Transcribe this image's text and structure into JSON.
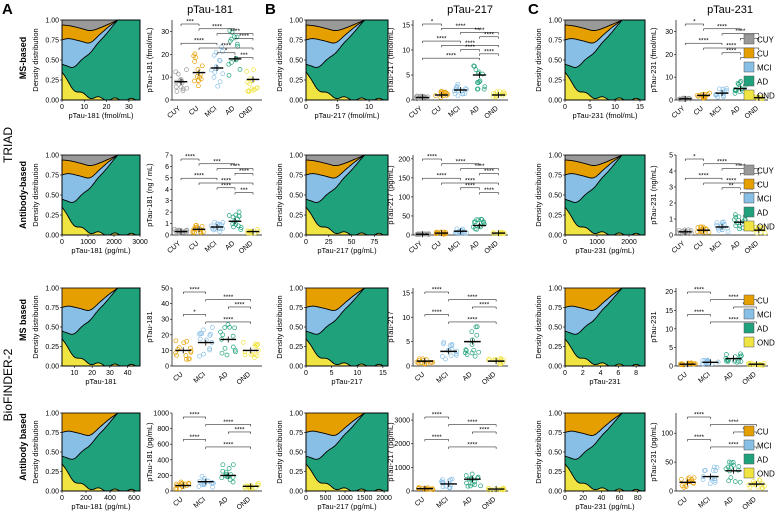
{
  "panel_letters": [
    "A",
    "B",
    "C"
  ],
  "column_titles": [
    "pTau-181",
    "pTau-217",
    "pTau-231"
  ],
  "cohorts": [
    "TRIAD",
    "BioFINDER-2"
  ],
  "assay_labels": [
    "MS-based",
    "Antibody-based",
    "MS based",
    "Antibody based"
  ],
  "density_ylabel": "Density distribution",
  "legends": {
    "triad": [
      "CUY",
      "CU",
      "MCI",
      "AD",
      "OND"
    ],
    "bf2": [
      "CU",
      "MCI",
      "AD",
      "OND"
    ]
  },
  "colors": {
    "CUY": "#999999",
    "CU": "#E69F00",
    "MCI": "#88BFE6",
    "AD": "#1FA27C",
    "OND": "#F0E442"
  },
  "chart_data": [
    {
      "row": 0,
      "col": 0,
      "type": "area",
      "xlabel": "pTau-181 (fmol/mL)",
      "xticks": [
        "0",
        "10",
        "20",
        "30"
      ],
      "xlim": [
        0,
        35
      ],
      "yticks": [
        "0.00",
        "0.25",
        "0.50",
        "0.75",
        "1.00"
      ],
      "ylim": [
        0,
        1
      ],
      "scatter": {
        "type": "scatter",
        "ylabel": "pTau-181 (fmol/mL)",
        "categories": [
          "CUY",
          "CU",
          "MCI",
          "AD",
          "OND"
        ],
        "yticks": [
          "0",
          "10",
          "20",
          "30"
        ],
        "ylim": [
          0,
          35
        ],
        "medians": [
          8,
          12,
          14,
          18,
          9
        ],
        "sig": [
          "***",
          "****",
          "****",
          "****",
          "****",
          "****",
          "*",
          "***"
        ]
      }
    },
    {
      "row": 0,
      "col": 1,
      "type": "area",
      "xlabel": "pTau-217 (fmol/mL)",
      "xticks": [
        "0",
        "5",
        "10"
      ],
      "xlim": [
        0,
        13
      ],
      "yticks": [
        "0.00",
        "0.25",
        "0.50",
        "0.75",
        "1.00"
      ],
      "ylim": [
        0,
        1
      ],
      "scatter": {
        "type": "scatter",
        "ylabel": "pTau-217 (fmol/mL)",
        "categories": [
          "CUY",
          "CU",
          "MCI",
          "AD",
          "OND"
        ],
        "yticks": [
          "0",
          "5",
          "10",
          "15"
        ],
        "ylim": [
          0,
          16
        ],
        "medians": [
          0.5,
          1,
          2,
          5,
          1
        ],
        "sig": [
          "*",
          "****",
          "****",
          "****",
          "****",
          "****",
          "****",
          "****",
          "****"
        ]
      }
    },
    {
      "row": 0,
      "col": 2,
      "type": "area",
      "xlabel": "pTau-231 (fmol/mL)",
      "xticks": [
        "0",
        "5",
        "10",
        "15"
      ],
      "xlim": [
        0,
        16
      ],
      "yticks": [
        "0.00",
        "0.25",
        "0.50",
        "0.75",
        "1.00"
      ],
      "ylim": [
        0,
        1
      ],
      "scatter": {
        "type": "scatter",
        "ylabel": "pTau-231 (fmol/mL)",
        "categories": [
          "CUY",
          "CU",
          "MCI",
          "AD",
          "OND"
        ],
        "yticks": [
          "0",
          "10",
          "20",
          "30"
        ],
        "ylim": [
          0,
          35
        ],
        "medians": [
          0.5,
          2,
          3,
          5,
          1
        ],
        "sig": [
          "*",
          "****",
          "****",
          "****",
          "****",
          "****",
          "****",
          "****"
        ]
      }
    },
    {
      "row": 1,
      "col": 0,
      "type": "area",
      "xlabel": "pTau-181 (pg/mL)",
      "xticks": [
        "0",
        "1000",
        "2000",
        "3000"
      ],
      "xlim": [
        0,
        3000
      ],
      "yticks": [
        "0.00",
        "0.25",
        "0.50",
        "0.75",
        "1.00"
      ],
      "ylim": [
        0,
        1
      ],
      "scatter": {
        "type": "scatter",
        "ylabel": "pTau-181 (ng / mL)",
        "categories": [
          "CUY",
          "CU",
          "MCI",
          "AD",
          "OND"
        ],
        "yticks": [
          "0",
          "1",
          "2",
          "3",
          "4",
          "5",
          "6",
          "7"
        ],
        "ylim": [
          0,
          7
        ],
        "medians": [
          0.3,
          0.5,
          0.7,
          1.2,
          0.3
        ],
        "sig": [
          "****",
          "***",
          "****",
          "****",
          "****",
          "****",
          "****",
          "***"
        ]
      }
    },
    {
      "row": 1,
      "col": 1,
      "type": "area",
      "xlabel": "pTau-217 (pg/mL)",
      "xticks": [
        "0",
        "25",
        "50",
        "75"
      ],
      "xlim": [
        0,
        90
      ],
      "yticks": [
        "0.00",
        "0.25",
        "0.50",
        "0.75",
        "1.00"
      ],
      "ylim": [
        0,
        1
      ],
      "scatter": {
        "type": "scatter",
        "ylabel": "pTau-217 (pg/mL)",
        "categories": [
          "CUY",
          "CU",
          "MCI",
          "AD",
          "OND"
        ],
        "yticks": [
          "0",
          "50",
          "100",
          "150",
          "200"
        ],
        "ylim": [
          0,
          210
        ],
        "medians": [
          2,
          5,
          10,
          25,
          5
        ],
        "sig": [
          "****",
          "****",
          "****",
          "****",
          "****",
          "****",
          "****",
          "****"
        ]
      }
    },
    {
      "row": 1,
      "col": 2,
      "type": "area",
      "xlabel": "pTau-231 (pg/mL)",
      "xticks": [
        "0",
        "1000",
        "2000"
      ],
      "xlim": [
        0,
        2500
      ],
      "yticks": [
        "0.00",
        "0.25",
        "0.50",
        "0.75",
        "1.00"
      ],
      "ylim": [
        0,
        1
      ],
      "scatter": {
        "type": "scatter",
        "ylabel": "pTau-231 (ng/mL)",
        "categories": [
          "CUY",
          "CU",
          "MCI",
          "AD",
          "OND"
        ],
        "yticks": [
          "0",
          "1",
          "2",
          "3",
          "4",
          "5"
        ],
        "ylim": [
          0,
          5
        ],
        "medians": [
          0.2,
          0.3,
          0.5,
          0.8,
          0.3
        ],
        "sig": [
          "*",
          "****",
          "****",
          "****",
          "****",
          "****",
          "**",
          "***"
        ]
      }
    },
    {
      "row": 2,
      "col": 0,
      "type": "area",
      "xlabel": "pTau-181",
      "xticks": [
        "10",
        "20",
        "30",
        "40"
      ],
      "xlim": [
        3,
        47
      ],
      "yticks": [
        "0.00",
        "0.25",
        "0.50",
        "0.75",
        "1.00"
      ],
      "ylim": [
        0,
        1
      ],
      "scatter": {
        "type": "scatter",
        "ylabel": "pTau-181",
        "categories": [
          "CU",
          "MCI",
          "AD",
          "OND"
        ],
        "yticks": [
          "0",
          "10",
          "20",
          "30",
          "40",
          "50"
        ],
        "ylim": [
          0,
          50
        ],
        "medians": [
          10,
          15,
          17,
          10
        ],
        "sig": [
          "****",
          "****",
          "****",
          "*",
          "****"
        ]
      }
    },
    {
      "row": 2,
      "col": 1,
      "type": "area",
      "xlabel": "pTau-217",
      "xticks": [
        "0",
        "5",
        "10",
        "15"
      ],
      "xlim": [
        0,
        16
      ],
      "yticks": [
        "0.00",
        "0.25",
        "0.50",
        "0.75",
        "1.00"
      ],
      "ylim": [
        0,
        1
      ],
      "scatter": {
        "type": "scatter",
        "ylabel": "pTau-217",
        "categories": [
          "CU",
          "MCI",
          "AD",
          "OND"
        ],
        "yticks": [
          "0",
          "5",
          "10",
          "15"
        ],
        "ylim": [
          0,
          16
        ],
        "medians": [
          1,
          3,
          5,
          1
        ],
        "sig": [
          "****",
          "****",
          "****",
          "****",
          "****"
        ]
      }
    },
    {
      "row": 2,
      "col": 2,
      "type": "area",
      "xlabel": "pTau-231",
      "xticks": [
        "0",
        "2",
        "4",
        "6",
        "8"
      ],
      "xlim": [
        0,
        9
      ],
      "yticks": [
        "0.00",
        "0.25",
        "0.50",
        "0.75",
        "1.00"
      ],
      "ylim": [
        0,
        1
      ],
      "scatter": {
        "type": "scatter",
        "ylabel": "pTau-231",
        "categories": [
          "CU",
          "MCI",
          "AD",
          "OND"
        ],
        "yticks": [
          "0",
          "5",
          "10",
          "15",
          "20"
        ],
        "ylim": [
          0,
          21
        ],
        "medians": [
          0.5,
          1,
          2,
          0.5
        ],
        "sig": [
          "****",
          "****",
          "**",
          "****",
          "****"
        ]
      }
    },
    {
      "row": 3,
      "col": 0,
      "type": "area",
      "xlabel": "pTau-181 (pg/mL)",
      "xticks": [
        "0",
        "200",
        "400",
        "600"
      ],
      "xlim": [
        0,
        650
      ],
      "yticks": [
        "0.00",
        "0.25",
        "0.50",
        "0.75",
        "1.00"
      ],
      "ylim": [
        0,
        1
      ],
      "scatter": {
        "type": "scatter",
        "ylabel": "pTau-181 (pg/mL)",
        "categories": [
          "CU",
          "MCI",
          "AD",
          "OND"
        ],
        "yticks": [
          "0",
          "200",
          "400",
          "600",
          "800",
          "1000"
        ],
        "ylim": [
          0,
          1000
        ],
        "medians": [
          70,
          120,
          200,
          60
        ],
        "sig": [
          "****",
          "****",
          "****",
          "****",
          "****"
        ]
      }
    },
    {
      "row": 3,
      "col": 1,
      "type": "area",
      "xlabel": "pTau-217 (pg/mL)",
      "xticks": [
        "0",
        "500",
        "1000",
        "1500",
        "2000"
      ],
      "xlim": [
        0,
        2100
      ],
      "yticks": [
        "0.00",
        "0.25",
        "0.50",
        "0.75",
        "1.00"
      ],
      "ylim": [
        0,
        1
      ],
      "scatter": {
        "type": "scatter",
        "ylabel": "pTau-217 (pg/mL)",
        "categories": [
          "CU",
          "MCI",
          "AD",
          "OND"
        ],
        "yticks": [
          "0",
          "1000",
          "2000",
          "3000"
        ],
        "ylim": [
          0,
          3300
        ],
        "medians": [
          100,
          300,
          500,
          80
        ],
        "sig": [
          "****",
          "****",
          "****",
          "****",
          "****"
        ]
      }
    },
    {
      "row": 3,
      "col": 2,
      "type": "area",
      "xlabel": "pTau-231 (pg/mL)",
      "xticks": [
        "0",
        "20",
        "40",
        "60",
        "80"
      ],
      "xlim": [
        0,
        88
      ],
      "yticks": [
        "0.00",
        "0.25",
        "0.50",
        "0.75",
        "1.00"
      ],
      "ylim": [
        0,
        1
      ],
      "scatter": {
        "type": "scatter",
        "ylabel": "pTau-231 (pg/mL)",
        "categories": [
          "CU",
          "MCI",
          "AD",
          "OND"
        ],
        "yticks": [
          "0",
          "50",
          "100"
        ],
        "ylim": [
          0,
          135
        ],
        "medians": [
          15,
          25,
          35,
          12
        ],
        "sig": [
          "****",
          "****",
          "**",
          "****",
          "****"
        ]
      }
    }
  ]
}
